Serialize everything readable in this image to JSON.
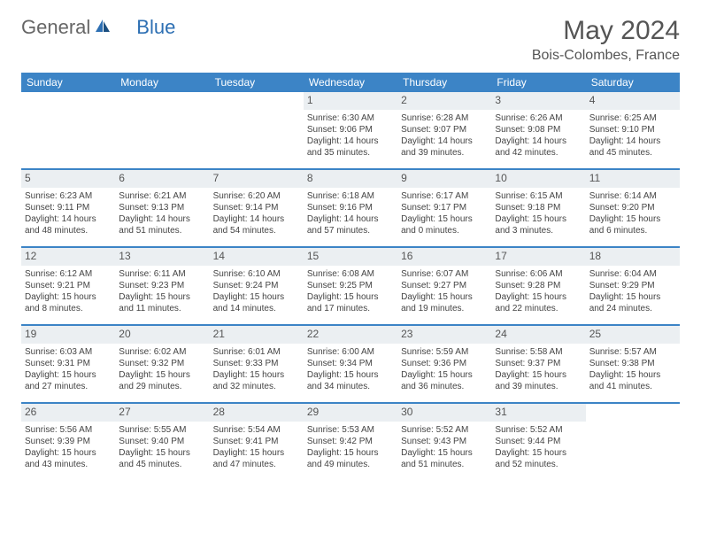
{
  "logo": {
    "text1": "General",
    "text2": "Blue"
  },
  "title": "May 2024",
  "location": "Bois-Colombes, France",
  "colors": {
    "header_bg": "#3c84c6",
    "header_text": "#ffffff",
    "daynum_bg": "#ebeff2",
    "text": "#444444",
    "divider": "#3c84c6"
  },
  "daysOfWeek": [
    "Sunday",
    "Monday",
    "Tuesday",
    "Wednesday",
    "Thursday",
    "Friday",
    "Saturday"
  ],
  "weeks": [
    [
      {
        "n": "",
        "sunrise": "",
        "sunset": "",
        "daylight": ""
      },
      {
        "n": "",
        "sunrise": "",
        "sunset": "",
        "daylight": ""
      },
      {
        "n": "",
        "sunrise": "",
        "sunset": "",
        "daylight": ""
      },
      {
        "n": "1",
        "sunrise": "Sunrise: 6:30 AM",
        "sunset": "Sunset: 9:06 PM",
        "daylight": "Daylight: 14 hours and 35 minutes."
      },
      {
        "n": "2",
        "sunrise": "Sunrise: 6:28 AM",
        "sunset": "Sunset: 9:07 PM",
        "daylight": "Daylight: 14 hours and 39 minutes."
      },
      {
        "n": "3",
        "sunrise": "Sunrise: 6:26 AM",
        "sunset": "Sunset: 9:08 PM",
        "daylight": "Daylight: 14 hours and 42 minutes."
      },
      {
        "n": "4",
        "sunrise": "Sunrise: 6:25 AM",
        "sunset": "Sunset: 9:10 PM",
        "daylight": "Daylight: 14 hours and 45 minutes."
      }
    ],
    [
      {
        "n": "5",
        "sunrise": "Sunrise: 6:23 AM",
        "sunset": "Sunset: 9:11 PM",
        "daylight": "Daylight: 14 hours and 48 minutes."
      },
      {
        "n": "6",
        "sunrise": "Sunrise: 6:21 AM",
        "sunset": "Sunset: 9:13 PM",
        "daylight": "Daylight: 14 hours and 51 minutes."
      },
      {
        "n": "7",
        "sunrise": "Sunrise: 6:20 AM",
        "sunset": "Sunset: 9:14 PM",
        "daylight": "Daylight: 14 hours and 54 minutes."
      },
      {
        "n": "8",
        "sunrise": "Sunrise: 6:18 AM",
        "sunset": "Sunset: 9:16 PM",
        "daylight": "Daylight: 14 hours and 57 minutes."
      },
      {
        "n": "9",
        "sunrise": "Sunrise: 6:17 AM",
        "sunset": "Sunset: 9:17 PM",
        "daylight": "Daylight: 15 hours and 0 minutes."
      },
      {
        "n": "10",
        "sunrise": "Sunrise: 6:15 AM",
        "sunset": "Sunset: 9:18 PM",
        "daylight": "Daylight: 15 hours and 3 minutes."
      },
      {
        "n": "11",
        "sunrise": "Sunrise: 6:14 AM",
        "sunset": "Sunset: 9:20 PM",
        "daylight": "Daylight: 15 hours and 6 minutes."
      }
    ],
    [
      {
        "n": "12",
        "sunrise": "Sunrise: 6:12 AM",
        "sunset": "Sunset: 9:21 PM",
        "daylight": "Daylight: 15 hours and 8 minutes."
      },
      {
        "n": "13",
        "sunrise": "Sunrise: 6:11 AM",
        "sunset": "Sunset: 9:23 PM",
        "daylight": "Daylight: 15 hours and 11 minutes."
      },
      {
        "n": "14",
        "sunrise": "Sunrise: 6:10 AM",
        "sunset": "Sunset: 9:24 PM",
        "daylight": "Daylight: 15 hours and 14 minutes."
      },
      {
        "n": "15",
        "sunrise": "Sunrise: 6:08 AM",
        "sunset": "Sunset: 9:25 PM",
        "daylight": "Daylight: 15 hours and 17 minutes."
      },
      {
        "n": "16",
        "sunrise": "Sunrise: 6:07 AM",
        "sunset": "Sunset: 9:27 PM",
        "daylight": "Daylight: 15 hours and 19 minutes."
      },
      {
        "n": "17",
        "sunrise": "Sunrise: 6:06 AM",
        "sunset": "Sunset: 9:28 PM",
        "daylight": "Daylight: 15 hours and 22 minutes."
      },
      {
        "n": "18",
        "sunrise": "Sunrise: 6:04 AM",
        "sunset": "Sunset: 9:29 PM",
        "daylight": "Daylight: 15 hours and 24 minutes."
      }
    ],
    [
      {
        "n": "19",
        "sunrise": "Sunrise: 6:03 AM",
        "sunset": "Sunset: 9:31 PM",
        "daylight": "Daylight: 15 hours and 27 minutes."
      },
      {
        "n": "20",
        "sunrise": "Sunrise: 6:02 AM",
        "sunset": "Sunset: 9:32 PM",
        "daylight": "Daylight: 15 hours and 29 minutes."
      },
      {
        "n": "21",
        "sunrise": "Sunrise: 6:01 AM",
        "sunset": "Sunset: 9:33 PM",
        "daylight": "Daylight: 15 hours and 32 minutes."
      },
      {
        "n": "22",
        "sunrise": "Sunrise: 6:00 AM",
        "sunset": "Sunset: 9:34 PM",
        "daylight": "Daylight: 15 hours and 34 minutes."
      },
      {
        "n": "23",
        "sunrise": "Sunrise: 5:59 AM",
        "sunset": "Sunset: 9:36 PM",
        "daylight": "Daylight: 15 hours and 36 minutes."
      },
      {
        "n": "24",
        "sunrise": "Sunrise: 5:58 AM",
        "sunset": "Sunset: 9:37 PM",
        "daylight": "Daylight: 15 hours and 39 minutes."
      },
      {
        "n": "25",
        "sunrise": "Sunrise: 5:57 AM",
        "sunset": "Sunset: 9:38 PM",
        "daylight": "Daylight: 15 hours and 41 minutes."
      }
    ],
    [
      {
        "n": "26",
        "sunrise": "Sunrise: 5:56 AM",
        "sunset": "Sunset: 9:39 PM",
        "daylight": "Daylight: 15 hours and 43 minutes."
      },
      {
        "n": "27",
        "sunrise": "Sunrise: 5:55 AM",
        "sunset": "Sunset: 9:40 PM",
        "daylight": "Daylight: 15 hours and 45 minutes."
      },
      {
        "n": "28",
        "sunrise": "Sunrise: 5:54 AM",
        "sunset": "Sunset: 9:41 PM",
        "daylight": "Daylight: 15 hours and 47 minutes."
      },
      {
        "n": "29",
        "sunrise": "Sunrise: 5:53 AM",
        "sunset": "Sunset: 9:42 PM",
        "daylight": "Daylight: 15 hours and 49 minutes."
      },
      {
        "n": "30",
        "sunrise": "Sunrise: 5:52 AM",
        "sunset": "Sunset: 9:43 PM",
        "daylight": "Daylight: 15 hours and 51 minutes."
      },
      {
        "n": "31",
        "sunrise": "Sunrise: 5:52 AM",
        "sunset": "Sunset: 9:44 PM",
        "daylight": "Daylight: 15 hours and 52 minutes."
      },
      {
        "n": "",
        "sunrise": "",
        "sunset": "",
        "daylight": ""
      }
    ]
  ]
}
